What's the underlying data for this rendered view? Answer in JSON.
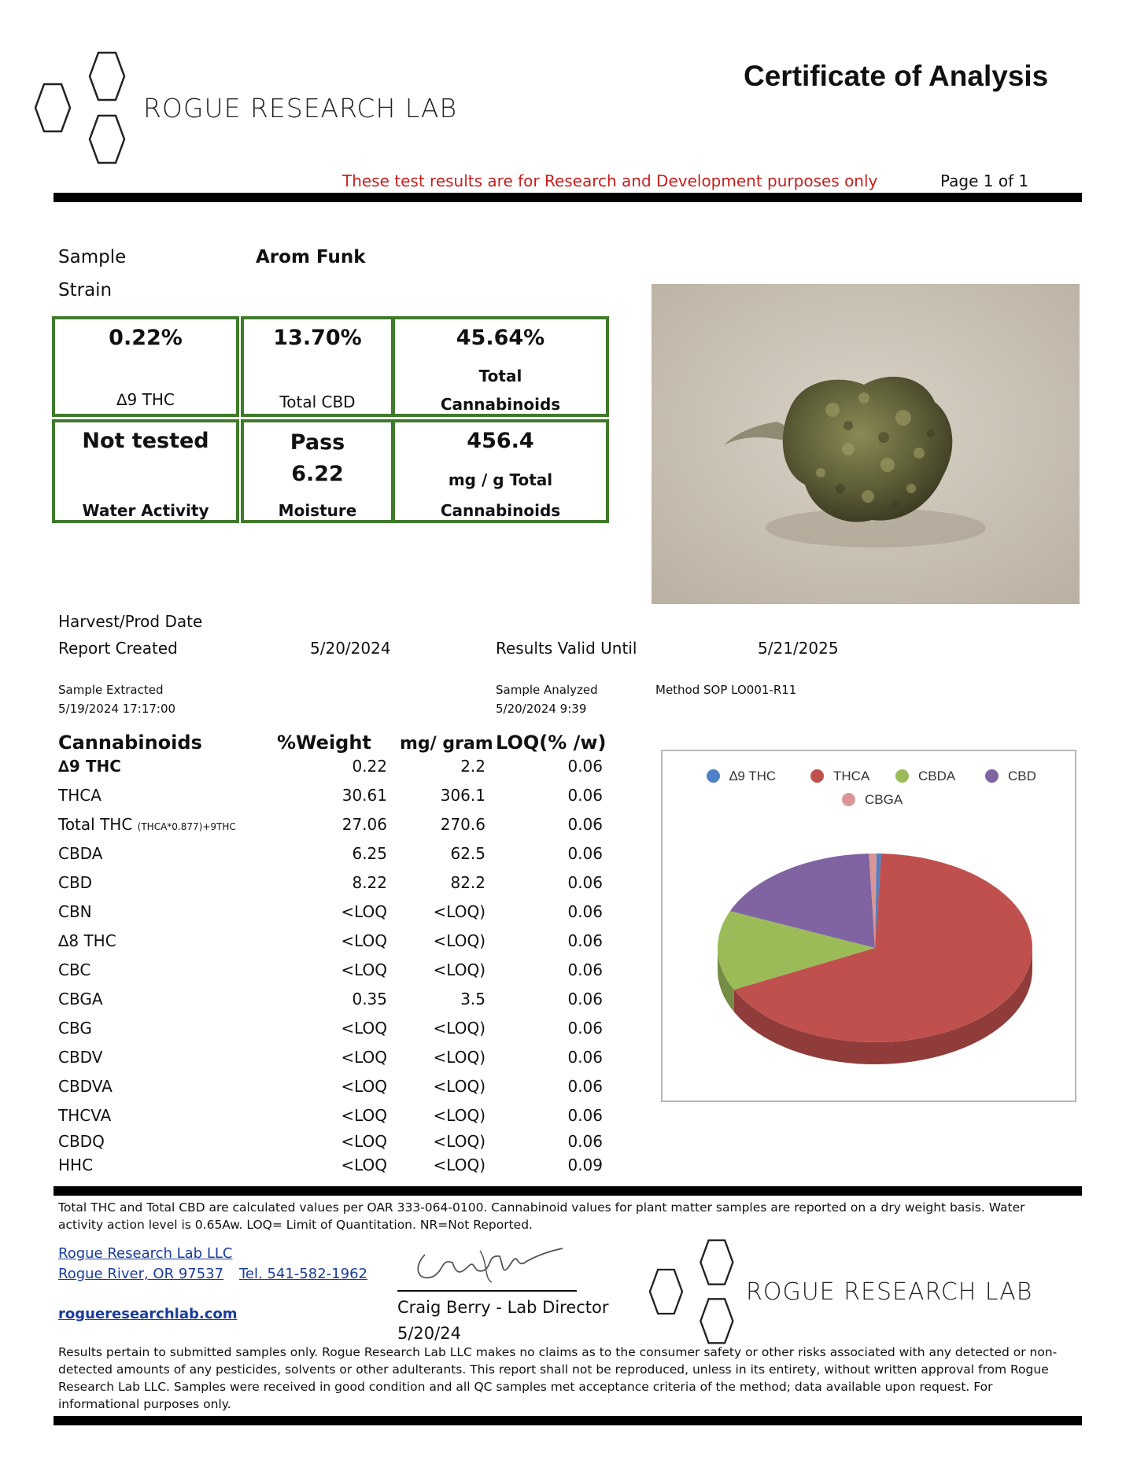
{
  "header": {
    "lab_name": "ROGUE RESEARCH LAB",
    "title": "Certificate of Analysis",
    "disclaimer": "These test results are for Research and Development purposes only",
    "page": "Page 1 of 1"
  },
  "sample": {
    "sample_label": "Sample",
    "sample_value": "Arom Funk",
    "strain_label": "Strain"
  },
  "summary": {
    "d9thc_value": "0.22%",
    "d9thc_label": "∆9 THC",
    "total_cbd_value": "13.70%",
    "total_cbd_label": "Total CBD",
    "total_cann_value": "45.64%",
    "total_cann_label1": "Total",
    "total_cann_label2": "Cannabinoids",
    "water_value": "Not tested",
    "water_label": "Water Activity",
    "moisture_status": "Pass",
    "moisture_value": "6.22",
    "moisture_label": "Moisture",
    "mg_value": "456.4",
    "mg_label1": "mg / g Total",
    "mg_label2": "Cannabinoids"
  },
  "dates": {
    "harvest_label": "Harvest/Prod Date",
    "report_label": "Report Created",
    "report_value": "5/20/2024",
    "valid_label": "Results Valid Until",
    "valid_value": "5/21/2025",
    "extracted_label": "Sample Extracted",
    "extracted_value": "5/19/2024 17:17:00",
    "analyzed_label": "Sample Analyzed",
    "analyzed_value": "5/20/2024 9:39",
    "method": "Method SOP LO001-R11"
  },
  "table": {
    "headers": [
      "Cannabinoids",
      "%Weight",
      "mg/ gram",
      "LOQ(% /w)"
    ],
    "rows": [
      {
        "name": "∆9 THC",
        "pct": "0.22",
        "mg": "2.2",
        "loq": "0.06"
      },
      {
        "name": "THCA",
        "pct": "30.61",
        "mg": "306.1",
        "loq": "0.06"
      },
      {
        "name": "Total THC",
        "sub": "(THCA*0.877)+9THC",
        "pct": "27.06",
        "mg": "270.6",
        "loq": "0.06"
      },
      {
        "name": "CBDA",
        "pct": "6.25",
        "mg": "62.5",
        "loq": "0.06"
      },
      {
        "name": "CBD",
        "pct": "8.22",
        "mg": "82.2",
        "loq": "0.06"
      },
      {
        "name": "CBN",
        "pct": "<LOQ",
        "mg": "<LOQ)",
        "loq": "0.06"
      },
      {
        "name": "∆8 THC",
        "pct": "<LOQ",
        "mg": "<LOQ)",
        "loq": "0.06"
      },
      {
        "name": "CBC",
        "pct": "<LOQ",
        "mg": "<LOQ)",
        "loq": "0.06"
      },
      {
        "name": "CBGA",
        "pct": "0.35",
        "mg": "3.5",
        "loq": "0.06"
      },
      {
        "name": "CBG",
        "pct": "<LOQ",
        "mg": "<LOQ)",
        "loq": "0.06"
      },
      {
        "name": "CBDV",
        "pct": "<LOQ",
        "mg": "<LOQ)",
        "loq": "0.06"
      },
      {
        "name": "CBDVA",
        "pct": "<LOQ",
        "mg": "<LOQ)",
        "loq": "0.06"
      },
      {
        "name": "THCVA",
        "pct": "<LOQ",
        "mg": "<LOQ)",
        "loq": "0.06"
      },
      {
        "name": "CBDQ",
        "pct": "<LOQ",
        "mg": "<LOQ)",
        "loq": "0.06"
      },
      {
        "name": "HHC",
        "pct": "<LOQ",
        "mg": "<LOQ)",
        "loq": "0.09"
      }
    ]
  },
  "chart_data": {
    "type": "pie",
    "categories": [
      "∆9 THC",
      "THCA",
      "CBDA",
      "CBD",
      "CBGA"
    ],
    "values": [
      0.22,
      30.61,
      6.25,
      8.22,
      0.35
    ],
    "colors": [
      "#4f7fc4",
      "#c0504d",
      "#9bbb59",
      "#8064a2",
      "#d99694"
    ],
    "legend_position": "top"
  },
  "notes": "Total THC and Total CBD are calculated values per OAR 333-064-0100.  Cannabinoid values for plant matter samples are reported on a dry weight basis. Water activity action level is 0.65Aw. LOQ= Limit of Quantitation. NR=Not Reported.",
  "footer": {
    "company": "Rogue Research Lab LLC",
    "address": "Rogue River, OR 97537",
    "tel": "Tel.  541-582-1962",
    "website": "rogueresearchlab.com",
    "signer": "Craig Berry - Lab Director",
    "sign_date": "5/20/24",
    "lab_name": "ROGUE RESEARCH LAB",
    "disclaimer": "Results pertain to submitted samples only. Rogue Research Lab LLC makes no claims as to the consumer safety or other risks associated with any detected or non-detected amounts of any pesticides, solvents or other adulterants. This report shall not be reproduced, unless in its entirety, without written approval from Rogue Research Lab LLC. Samples were received in good condition and all QC samples met acceptance criteria of the method; data available upon request. For informational purposes only."
  }
}
